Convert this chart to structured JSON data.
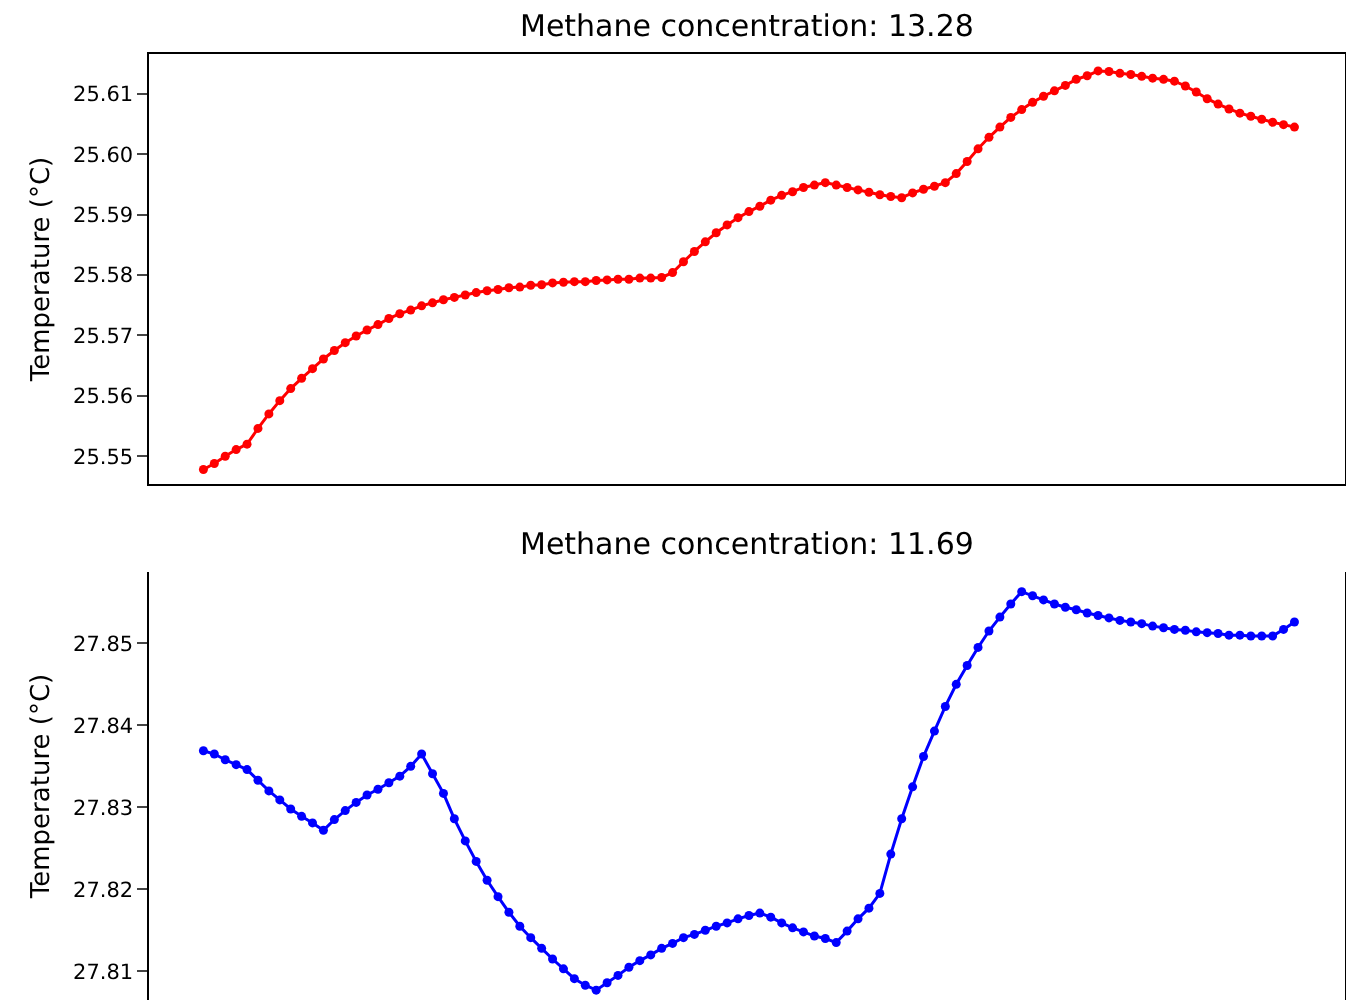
{
  "chart_data": [
    {
      "type": "line",
      "title": "Methane concentration: 13.28",
      "ylabel": "Temperature (°C)",
      "marker": "circle",
      "line_style": "solid",
      "tick_labels": "y",
      "categories": [
        null,
        null,
        null,
        null,
        null,
        null,
        null,
        null,
        null,
        null,
        null,
        null,
        null,
        null,
        null,
        null,
        null,
        null,
        null,
        null,
        null,
        null,
        null,
        null,
        null,
        null,
        null,
        null,
        null,
        null,
        null,
        null,
        null,
        null,
        null,
        null,
        null,
        null,
        null,
        null,
        null,
        null,
        null,
        null,
        null,
        null,
        null,
        null,
        null,
        null,
        null,
        null,
        null,
        null,
        null,
        null,
        null,
        null,
        null,
        null,
        null,
        null,
        null,
        null,
        null,
        null,
        null,
        null,
        null,
        null,
        null,
        null,
        null,
        null,
        null,
        null,
        null,
        null,
        null,
        null,
        null,
        null,
        null,
        null,
        null,
        null,
        null,
        null,
        null,
        null,
        null,
        null,
        null,
        null,
        null,
        null,
        null,
        null,
        null,
        null,
        null
      ],
      "ylim": [
        25.5454,
        25.6166
      ],
      "yticks": [
        25.55,
        25.56,
        25.57,
        25.58,
        25.59,
        {
          "value": 25.6,
          "label": "25.60"
        },
        25.61
      ],
      "series": [
        {
          "color": "#ff0000",
          "values": [
            25.5478,
            25.5488,
            25.55,
            25.5511,
            25.552,
            25.5546,
            25.557,
            25.5592,
            25.5612,
            25.5629,
            25.5645,
            25.5661,
            25.5675,
            25.5688,
            25.5699,
            25.5709,
            25.5718,
            25.5728,
            25.5736,
            25.5742,
            25.5749,
            25.5754,
            25.5759,
            25.5763,
            25.5767,
            25.5771,
            25.5774,
            25.5776,
            25.5779,
            25.578,
            25.5783,
            25.5784,
            25.5787,
            25.5788,
            25.5789,
            25.5789,
            25.5791,
            25.5792,
            25.5793,
            25.5793,
            25.5795,
            25.5795,
            25.5796,
            25.5804,
            25.5822,
            25.5839,
            25.5855,
            25.587,
            25.5883,
            25.5895,
            25.5905,
            25.5914,
            25.5924,
            25.5932,
            25.5938,
            25.5945,
            25.5949,
            25.5953,
            25.5949,
            25.5945,
            25.5941,
            25.5937,
            25.5933,
            25.593,
            25.5928,
            25.5936,
            25.5942,
            25.5947,
            25.5953,
            25.5968,
            25.5988,
            25.6009,
            25.6028,
            25.6045,
            25.6061,
            25.6074,
            25.6086,
            25.6096,
            25.6105,
            25.6114,
            25.6124,
            25.613,
            25.6138,
            25.6137,
            25.6134,
            25.6132,
            25.6129,
            25.6126,
            25.6124,
            25.6121,
            25.6113,
            25.6103,
            25.6092,
            25.6083,
            25.6075,
            25.6068,
            25.6063,
            25.6058,
            25.6053,
            25.6049,
            25.6045
          ]
        }
      ]
    },
    {
      "type": "line",
      "title": "Methane concentration: 11.69",
      "ylabel": "Temperature (°C)",
      "marker": "circle",
      "line_style": "solid",
      "tick_labels": "y",
      "categories": [
        null,
        null,
        null,
        null,
        null,
        null,
        null,
        null,
        null,
        null,
        null,
        null,
        null,
        null,
        null,
        null,
        null,
        null,
        null,
        null,
        null,
        null,
        null,
        null,
        null,
        null,
        null,
        null,
        null,
        null,
        null,
        null,
        null,
        null,
        null,
        null,
        null,
        null,
        null,
        null,
        null,
        null,
        null,
        null,
        null,
        null,
        null,
        null,
        null,
        null,
        null,
        null,
        null,
        null,
        null,
        null,
        null,
        null,
        null,
        null,
        null,
        null,
        null,
        null,
        null,
        null,
        null,
        null,
        null,
        null,
        null,
        null,
        null,
        null,
        null,
        null,
        null,
        null,
        null,
        null,
        null,
        null,
        null,
        null,
        null,
        null,
        null,
        null,
        null,
        null,
        null,
        null,
        null,
        null,
        null,
        null,
        null,
        null,
        null,
        null,
        null
      ],
      "ylim": [
        27.8065,
        27.8587
      ],
      "yticks": [
        27.81,
        27.82,
        27.83,
        27.84,
        27.85
      ],
      "series": [
        {
          "color": "#0000ff",
          "values": [
            27.8369,
            27.8365,
            27.8358,
            27.8352,
            27.8346,
            27.8333,
            27.832,
            27.8309,
            27.8298,
            27.8289,
            27.8281,
            27.8272,
            27.8285,
            27.8296,
            27.8306,
            27.8315,
            27.8322,
            27.833,
            27.8338,
            27.835,
            27.8365,
            27.8341,
            27.8317,
            27.8286,
            27.8259,
            27.8234,
            27.8211,
            27.8191,
            27.8172,
            27.8155,
            27.8141,
            27.8128,
            27.8115,
            27.8103,
            27.8091,
            27.8083,
            27.8077,
            27.8086,
            27.8095,
            27.8105,
            27.8113,
            27.812,
            27.8128,
            27.8134,
            27.8141,
            27.8145,
            27.815,
            27.8155,
            27.8159,
            27.8164,
            27.8168,
            27.8171,
            27.8166,
            27.8159,
            27.8153,
            27.8148,
            27.8143,
            27.814,
            27.8135,
            27.8149,
            27.8164,
            27.8177,
            27.8195,
            27.8243,
            27.8286,
            27.8325,
            27.8362,
            27.8393,
            27.8423,
            27.845,
            27.8473,
            27.8495,
            27.8515,
            27.8532,
            27.8548,
            27.8563,
            27.8558,
            27.8553,
            27.8548,
            27.8544,
            27.8541,
            27.8537,
            27.8534,
            27.8531,
            27.8528,
            27.8526,
            27.8524,
            27.8521,
            27.8519,
            27.8517,
            27.8516,
            27.8514,
            27.8513,
            27.8512,
            27.851,
            27.851,
            27.8509,
            27.8509,
            27.8509,
            27.8517,
            27.8526
          ]
        }
      ]
    }
  ]
}
